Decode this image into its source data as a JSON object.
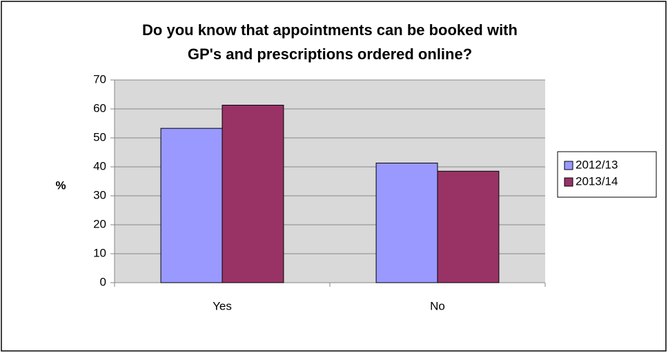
{
  "chart_data": {
    "type": "bar",
    "title": [
      "Do you know that appointments can be booked with",
      "GP's and prescriptions ordered online?"
    ],
    "y_label": "%",
    "categories": [
      "Yes",
      "No"
    ],
    "series": [
      {
        "name": "2012/13",
        "color": "#9999ff",
        "values": [
          53.3,
          41.3
        ]
      },
      {
        "name": "2013/14",
        "color": "#993366",
        "values": [
          61.3,
          38.5
        ]
      }
    ],
    "ylim": [
      0,
      70
    ],
    "yticks": [
      0,
      10,
      20,
      30,
      40,
      50,
      60,
      70
    ],
    "grid": true,
    "legend": "right"
  }
}
